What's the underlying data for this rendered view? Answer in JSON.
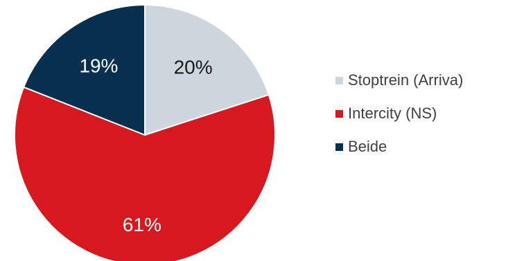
{
  "chart_data": {
    "type": "pie",
    "title": "",
    "slices": [
      {
        "label": "Stoptrein (Arriva)",
        "value": 20,
        "display": "20%",
        "color": "#ccd6dc",
        "label_color": "#1a1a1a"
      },
      {
        "label": "Intercity (NS)",
        "value": 61,
        "display": "61%",
        "color": "#d7191f",
        "label_color": "#ffffff"
      },
      {
        "label": "Beide",
        "value": 19,
        "display": "19%",
        "color": "#06304d",
        "label_color": "#ffffff"
      }
    ],
    "legend_position": "right"
  }
}
